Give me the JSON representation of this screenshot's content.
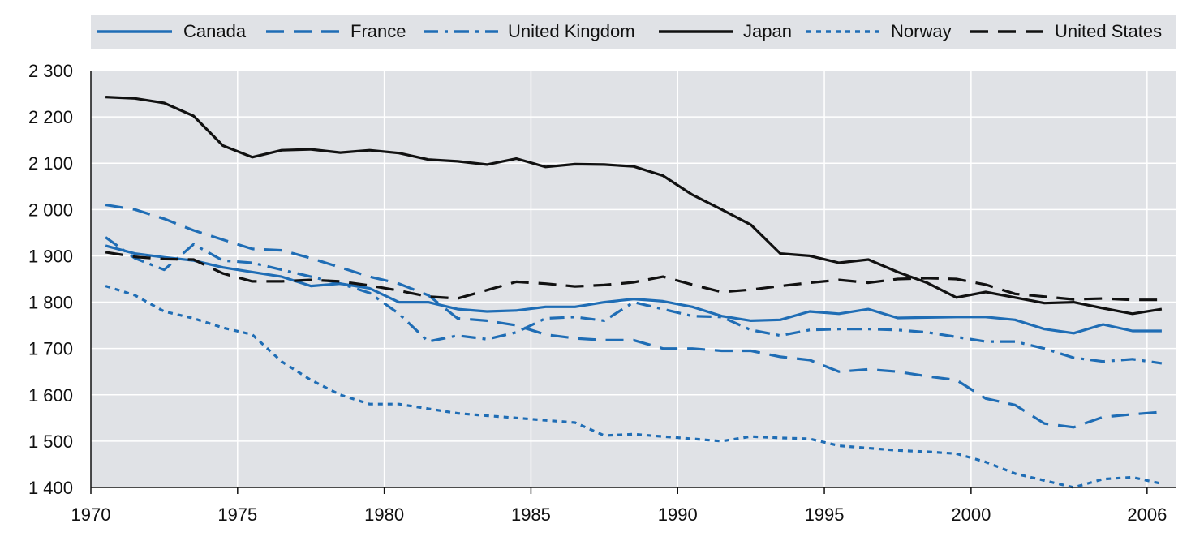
{
  "chart_data": {
    "type": "line",
    "title": "",
    "xlabel": "",
    "ylabel": "",
    "xlim": [
      1970,
      2007
    ],
    "ylim": [
      1400,
      2300
    ],
    "xticks": [
      {
        "value": 1970,
        "label": "1970"
      },
      {
        "value": 1975,
        "label": "1975"
      },
      {
        "value": 1980,
        "label": "1980"
      },
      {
        "value": 1985,
        "label": "1985"
      },
      {
        "value": 1990,
        "label": "1990"
      },
      {
        "value": 1995,
        "label": "1995"
      },
      {
        "value": 2000,
        "label": "2000"
      },
      {
        "value": 2006,
        "label": "2006"
      }
    ],
    "yticks": [
      {
        "value": 1400,
        "label": "1 400"
      },
      {
        "value": 1500,
        "label": "1 500"
      },
      {
        "value": 1600,
        "label": "1 600"
      },
      {
        "value": 1700,
        "label": "1 700"
      },
      {
        "value": 1800,
        "label": "1 800"
      },
      {
        "value": 1900,
        "label": "1 900"
      },
      {
        "value": 2000,
        "label": "2 000"
      },
      {
        "value": 2100,
        "label": "2 100"
      },
      {
        "value": 2200,
        "label": "2 200"
      },
      {
        "value": 2300,
        "label": "2 300"
      }
    ],
    "grid": true,
    "legend_position": "top",
    "x": [
      1970,
      1971,
      1972,
      1973,
      1974,
      1975,
      1976,
      1977,
      1978,
      1979,
      1980,
      1981,
      1982,
      1983,
      1984,
      1985,
      1986,
      1987,
      1988,
      1989,
      1990,
      1991,
      1992,
      1993,
      1994,
      1995,
      1996,
      1997,
      1998,
      1999,
      2000,
      2001,
      2002,
      2003,
      2004,
      2005,
      2006
    ],
    "series": [
      {
        "name": "Canada",
        "color": "#1f6db5",
        "dash": "solid",
        "values": [
          1922,
          1905,
          1897,
          1890,
          1875,
          1865,
          1855,
          1835,
          1840,
          1830,
          1800,
          1800,
          1785,
          1780,
          1782,
          1790,
          1790,
          1800,
          1807,
          1802,
          1790,
          1770,
          1760,
          1762,
          1780,
          1775,
          1785,
          1766,
          1767,
          1768,
          1768,
          1762,
          1742,
          1733,
          1752,
          1738,
          1738
        ]
      },
      {
        "name": "France",
        "color": "#1f6db5",
        "dash": "longdash",
        "values": [
          2010,
          2000,
          1980,
          1955,
          1935,
          1915,
          1912,
          1895,
          1875,
          1855,
          1840,
          1815,
          1765,
          1760,
          1750,
          1730,
          1722,
          1718,
          1718,
          1700,
          1700,
          1695,
          1695,
          1682,
          1675,
          1650,
          1655,
          1650,
          1640,
          1632,
          1592,
          1578,
          1538,
          1530,
          1552,
          1558,
          1563
        ]
      },
      {
        "name": "United Kingdom",
        "color": "#1f6db5",
        "dash": "dashdot",
        "values": [
          1940,
          1895,
          1870,
          1925,
          1890,
          1885,
          1870,
          1855,
          1840,
          1820,
          1775,
          1715,
          1728,
          1720,
          1735,
          1765,
          1768,
          1760,
          1800,
          1785,
          1770,
          1768,
          1740,
          1728,
          1740,
          1742,
          1742,
          1740,
          1735,
          1725,
          1715,
          1715,
          1700,
          1680,
          1672,
          1677,
          1668
        ]
      },
      {
        "name": "Japan",
        "color": "#111111",
        "dash": "solid",
        "values": [
          2243,
          2240,
          2230,
          2202,
          2138,
          2113,
          2128,
          2130,
          2123,
          2128,
          2122,
          2108,
          2104,
          2097,
          2110,
          2092,
          2098,
          2097,
          2093,
          2073,
          2032,
          2000,
          1967,
          1905,
          1900,
          1885,
          1892,
          1865,
          1842,
          1810,
          1822,
          1810,
          1798,
          1800,
          1787,
          1775,
          1785
        ]
      },
      {
        "name": "Norway",
        "color": "#1f6db5",
        "dash": "dotted",
        "values": [
          1835,
          1815,
          1780,
          1765,
          1745,
          1730,
          1672,
          1632,
          1600,
          1580,
          1580,
          1570,
          1560,
          1555,
          1550,
          1545,
          1540,
          1512,
          1515,
          1510,
          1505,
          1500,
          1510,
          1507,
          1505,
          1490,
          1485,
          1480,
          1477,
          1473,
          1455,
          1430,
          1415,
          1400,
          1418,
          1422,
          1408
        ]
      },
      {
        "name": "United States",
        "color": "#111111",
        "dash": "longdash",
        "values": [
          1908,
          1898,
          1893,
          1892,
          1862,
          1845,
          1845,
          1848,
          1845,
          1836,
          1825,
          1812,
          1808,
          1826,
          1844,
          1840,
          1834,
          1837,
          1843,
          1855,
          1838,
          1822,
          1827,
          1835,
          1842,
          1848,
          1842,
          1850,
          1852,
          1850,
          1838,
          1818,
          1812,
          1806,
          1808,
          1805,
          1805
        ]
      }
    ]
  },
  "colors": {
    "plot_background": "#e0e2e6",
    "legend_background": "#e0e2e6",
    "grid": "#ffffff",
    "axis": "#111111"
  }
}
